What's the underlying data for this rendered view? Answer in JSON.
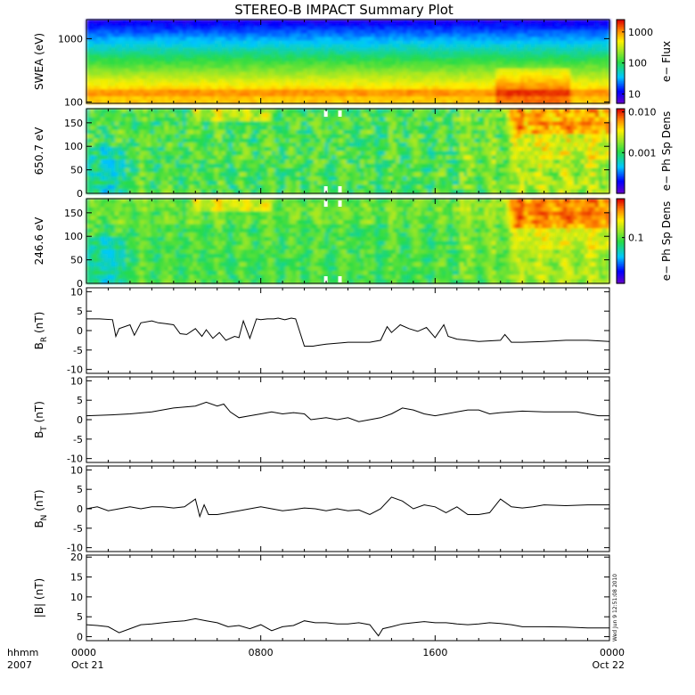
{
  "title": "STEREO-B IMPACT Summary Plot",
  "stamp": "Wed Jun  9 12:51:08 2010",
  "time_axis": {
    "label_top": "hhmm",
    "label_bottom": "2007",
    "ticks": [
      {
        "hour": 0,
        "top": "0000",
        "bottom": "Oct 21"
      },
      {
        "hour": 8,
        "top": "0800",
        "bottom": ""
      },
      {
        "hour": 16,
        "top": "1600",
        "bottom": ""
      },
      {
        "hour": 24,
        "top": "0000",
        "bottom": "Oct 22"
      }
    ],
    "range_hours": [
      0,
      24
    ]
  },
  "chart_data": [
    {
      "type": "heatmap",
      "id": "swea",
      "ylabel": "SWEA (eV)",
      "yscale": "log",
      "ylim": [
        95,
        2000
      ],
      "yticks": [
        "100",
        "1000"
      ],
      "yticks_values": [
        100,
        1000
      ],
      "colorbar": {
        "label": "e− Flux",
        "scale": "log",
        "range": [
          5,
          2500
        ],
        "ticks": [
          "10",
          "100",
          "1000"
        ],
        "tick_values": [
          10,
          100,
          1000
        ]
      }
    },
    {
      "type": "heatmap",
      "id": "pad650",
      "ylabel": "650.7 eV",
      "ylim": [
        0,
        180
      ],
      "yticks": [
        "0",
        "50",
        "100",
        "150"
      ],
      "yticks_values": [
        0,
        50,
        100,
        150
      ],
      "colorbar": {
        "label": "e− Ph Sp Dens",
        "scale": "log",
        "range": [
          0.0001,
          0.012
        ],
        "ticks": [
          "0.010",
          "0.001"
        ],
        "tick_values": [
          0.01,
          0.001
        ]
      }
    },
    {
      "type": "heatmap",
      "id": "pad246",
      "ylabel": "246.6 eV",
      "ylim": [
        0,
        180
      ],
      "yticks": [
        "0",
        "50",
        "100",
        "150"
      ],
      "yticks_values": [
        0,
        50,
        100,
        150
      ],
      "colorbar": {
        "label": "e− Ph Sp Dens",
        "scale": "log",
        "range": [
          0.015,
          0.5
        ],
        "ticks": [
          "0.1"
        ],
        "tick_values": [
          0.1
        ]
      }
    },
    {
      "type": "line",
      "id": "br",
      "ylabel": "B",
      "ylabel_sub": "R",
      "ylabel_unit": " (nT)",
      "ylim": [
        -11,
        11
      ],
      "yticks": [
        "10",
        "5",
        "0",
        "-5",
        "-10"
      ],
      "yticks_values": [
        10,
        5,
        0,
        -5,
        -10
      ],
      "x": [
        0,
        0.6,
        1.2,
        1.35,
        1.5,
        2.0,
        2.2,
        2.5,
        3.0,
        3.3,
        3.6,
        4.0,
        4.3,
        4.6,
        5.0,
        5.3,
        5.5,
        5.8,
        6.1,
        6.4,
        6.8,
        7.0,
        7.2,
        7.5,
        7.8,
        8.0,
        8.3,
        8.6,
        8.8,
        9.1,
        9.4,
        9.6,
        10.0,
        10.2,
        10.4,
        10.6,
        11.0,
        12.0,
        13.0,
        13.5,
        13.8,
        14.0,
        14.4,
        14.8,
        15.2,
        15.6,
        16.0,
        16.4,
        16.6,
        17.0,
        17.5,
        18.0,
        19.0,
        19.2,
        19.5,
        20.0,
        21.0,
        22.0,
        23.0,
        24.0
      ],
      "y": [
        3,
        3,
        2.8,
        -1.5,
        0.5,
        1.5,
        -1.2,
        2.0,
        2.5,
        2.0,
        1.8,
        1.5,
        -0.8,
        -1.0,
        0.5,
        -1.5,
        0.2,
        -2.0,
        -0.5,
        -2.5,
        -1.5,
        -1.8,
        2.5,
        -2.0,
        3.0,
        2.8,
        3.0,
        3.0,
        3.2,
        2.8,
        3.2,
        3.0,
        -4.0,
        -4.0,
        -4.0,
        -3.8,
        -3.5,
        -3.0,
        -3.0,
        -2.5,
        1.0,
        -0.5,
        1.5,
        0.5,
        -0.2,
        0.8,
        -1.8,
        1.5,
        -1.5,
        -2.2,
        -2.5,
        -2.8,
        -2.5,
        -1.0,
        -3.0,
        -3.0,
        -2.8,
        -2.5,
        -2.5,
        -2.8
      ]
    },
    {
      "type": "line",
      "id": "bt",
      "ylabel": "B",
      "ylabel_sub": "T",
      "ylabel_unit": " (nT)",
      "ylim": [
        -11,
        11
      ],
      "yticks": [
        "10",
        "5",
        "0",
        "-5",
        "-10"
      ],
      "yticks_values": [
        10,
        5,
        0,
        -5,
        -10
      ],
      "x": [
        0,
        1.0,
        2.0,
        3.0,
        4.0,
        5.0,
        5.5,
        6.0,
        6.3,
        6.6,
        7.0,
        7.5,
        8.0,
        8.5,
        9.0,
        9.5,
        10.0,
        10.3,
        11.0,
        11.5,
        12.0,
        12.5,
        13.0,
        13.5,
        14.0,
        14.5,
        15.0,
        15.5,
        16.0,
        16.5,
        17.0,
        17.5,
        18.0,
        18.5,
        19.0,
        19.5,
        20.0,
        21.0,
        22.0,
        22.5,
        23.0,
        23.5,
        24.0
      ],
      "y": [
        1.0,
        1.2,
        1.5,
        2.0,
        3.0,
        3.5,
        4.5,
        3.5,
        4.0,
        2.0,
        0.5,
        1.0,
        1.5,
        2.0,
        1.5,
        1.8,
        1.5,
        0.0,
        0.5,
        0.0,
        0.5,
        -0.5,
        0.0,
        0.5,
        1.5,
        3.0,
        2.5,
        1.5,
        1.0,
        1.5,
        2.0,
        2.5,
        2.5,
        1.5,
        1.8,
        2.0,
        2.2,
        2.0,
        2.0,
        2.0,
        1.5,
        1.0,
        1.0
      ]
    },
    {
      "type": "line",
      "id": "bn",
      "ylabel": "B",
      "ylabel_sub": "N",
      "ylabel_unit": " (nT)",
      "ylim": [
        -11,
        11
      ],
      "yticks": [
        "10",
        "5",
        "0",
        "-5",
        "-10"
      ],
      "yticks_values": [
        10,
        5,
        0,
        -5,
        -10
      ],
      "x": [
        0,
        0.5,
        1.0,
        1.5,
        2.0,
        2.5,
        3.0,
        3.5,
        4.0,
        4.5,
        5.0,
        5.2,
        5.4,
        5.6,
        5.8,
        6.0,
        6.5,
        7.0,
        7.5,
        8.0,
        8.5,
        9.0,
        9.5,
        10.0,
        10.5,
        11.0,
        11.5,
        12.0,
        12.5,
        13.0,
        13.5,
        14.0,
        14.5,
        15.0,
        15.5,
        16.0,
        16.5,
        17.0,
        17.5,
        18.0,
        18.5,
        19.0,
        19.5,
        20.0,
        20.5,
        21.0,
        22.0,
        23.0,
        24.0
      ],
      "y": [
        0,
        0.5,
        -0.5,
        0.0,
        0.5,
        0.0,
        0.5,
        0.5,
        0.2,
        0.5,
        2.5,
        -2.0,
        1.0,
        -1.5,
        -1.5,
        -1.5,
        -1.0,
        -0.5,
        0.0,
        0.5,
        0.0,
        -0.5,
        -0.2,
        0.2,
        0.0,
        -0.5,
        0.0,
        -0.5,
        -0.3,
        -1.5,
        0.0,
        3.0,
        2.0,
        0.0,
        1.0,
        0.5,
        -1.0,
        0.5,
        -1.5,
        -1.5,
        -1.0,
        2.5,
        0.5,
        0.2,
        0.5,
        1.0,
        0.8,
        1.0,
        1.0
      ]
    },
    {
      "type": "line",
      "id": "bmag",
      "ylabel": "|B| (nT)",
      "ylim": [
        -1,
        20.5
      ],
      "yticks": [
        "20",
        "15",
        "10",
        "5",
        "0"
      ],
      "yticks_values": [
        20,
        15,
        10,
        5,
        0
      ],
      "x": [
        0,
        0.5,
        1.0,
        1.5,
        2.0,
        2.5,
        3.0,
        3.5,
        4.0,
        4.5,
        5.0,
        5.5,
        6.0,
        6.5,
        7.0,
        7.5,
        8.0,
        8.5,
        9.0,
        9.5,
        10.0,
        10.5,
        11.0,
        11.5,
        12.0,
        12.5,
        13.0,
        13.4,
        13.6,
        14.0,
        14.5,
        15.0,
        15.5,
        16.0,
        16.5,
        17.0,
        17.5,
        18.0,
        18.5,
        19.0,
        19.5,
        20.0,
        21.0,
        22.0,
        23.0,
        24.0
      ],
      "y": [
        3.0,
        2.8,
        2.5,
        1.0,
        2.0,
        3.0,
        3.2,
        3.5,
        3.8,
        4.0,
        4.5,
        4.0,
        3.5,
        2.5,
        2.8,
        2.0,
        3.0,
        1.5,
        2.5,
        2.8,
        4.0,
        3.5,
        3.5,
        3.2,
        3.2,
        3.5,
        3.0,
        0.2,
        2.0,
        2.5,
        3.2,
        3.5,
        3.8,
        3.5,
        3.5,
        3.2,
        3.0,
        3.2,
        3.5,
        3.3,
        3.0,
        2.5,
        2.5,
        2.4,
        2.2,
        2.2
      ]
    }
  ]
}
